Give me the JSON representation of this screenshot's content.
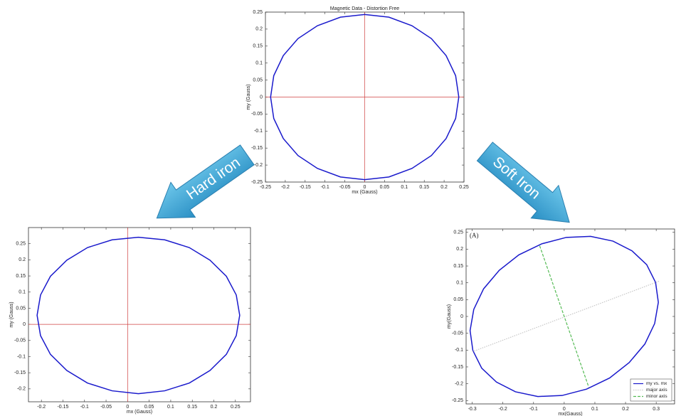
{
  "labels": [
    "Hard iron",
    "Soft Iron"
  ],
  "chart_data": [
    {
      "type": "line",
      "title": "Magnetic Data - Distortion Free",
      "x_label": "mx (Gauss)",
      "y_label": "my (Gauss)",
      "xlim": [
        -0.25,
        0.25
      ],
      "ylim": [
        -0.25,
        0.25
      ],
      "xticks": [
        -0.25,
        -0.2,
        -0.15,
        -0.1,
        -0.05,
        0,
        0.05,
        0.1,
        0.15,
        0.2,
        0.25
      ],
      "yticks": [
        -0.25,
        -0.2,
        -0.15,
        -0.1,
        -0.05,
        0,
        0.05,
        0.1,
        0.15,
        0.2,
        0.25
      ],
      "crosshair_color": "#d04040",
      "series": [
        {
          "color": "#1a1acc",
          "x": [
            0.237,
            0.229,
            0.205,
            0.168,
            0.119,
            0.061,
            0,
            -0.061,
            -0.119,
            -0.168,
            -0.205,
            -0.229,
            -0.237,
            -0.229,
            -0.205,
            -0.168,
            -0.119,
            -0.061,
            0,
            0.061,
            0.119,
            0.168,
            0.205,
            0.229
          ],
          "values": [
            0,
            0.063,
            0.122,
            0.172,
            0.21,
            0.235,
            0.243,
            0.235,
            0.21,
            0.172,
            0.122,
            0.063,
            0,
            -0.063,
            -0.122,
            -0.172,
            -0.21,
            -0.235,
            -0.243,
            -0.235,
            -0.21,
            -0.172,
            -0.122,
            -0.063
          ]
        }
      ]
    },
    {
      "type": "line",
      "x_label": "mx (Gauss)",
      "y_label": "my (Gauss)",
      "xlim": [
        -0.23,
        0.285
      ],
      "ylim": [
        -0.24,
        0.3
      ],
      "xticks": [
        -0.2,
        -0.15,
        -0.1,
        -0.05,
        0,
        0.05,
        0.1,
        0.15,
        0.2,
        0.25
      ],
      "yticks": [
        -0.2,
        -0.15,
        -0.1,
        -0.05,
        0,
        0.05,
        0.1,
        0.15,
        0.2,
        0.25
      ],
      "crosshair_color": "#d04040",
      "series": [
        {
          "color": "#1a1acc",
          "x": [
            0.26,
            0.252,
            0.229,
            0.191,
            0.143,
            0.086,
            0.025,
            -0.036,
            -0.093,
            -0.141,
            -0.179,
            -0.202,
            -0.21,
            -0.202,
            -0.179,
            -0.141,
            -0.093,
            -0.036,
            0.025,
            0.086,
            0.143,
            0.191,
            0.229,
            0.252
          ],
          "values": [
            0.028,
            0.091,
            0.149,
            0.199,
            0.238,
            0.262,
            0.27,
            0.262,
            0.238,
            0.199,
            0.149,
            0.091,
            0.028,
            -0.035,
            -0.093,
            -0.143,
            -0.182,
            -0.206,
            -0.215,
            -0.206,
            -0.182,
            -0.143,
            -0.093,
            -0.035
          ]
        }
      ]
    },
    {
      "type": "line",
      "x_label": "mx(Gauss)",
      "y_label": "my(Gauss)",
      "annotations": [
        "(A)"
      ],
      "xlim": [
        -0.32,
        0.36
      ],
      "ylim": [
        -0.26,
        0.26
      ],
      "xticks": [
        -0.3,
        -0.2,
        -0.1,
        0,
        0.1,
        0.2,
        0.3
      ],
      "yticks": [
        -0.25,
        -0.2,
        -0.15,
        -0.1,
        -0.05,
        0,
        0.05,
        0.1,
        0.15,
        0.2,
        0.25
      ],
      "legend": "lower right",
      "series": [
        {
          "name": "my vs. mx",
          "color": "#1a1acc",
          "x": [
            0.298,
            0.269,
            0.221,
            0.159,
            0.086,
            0.007,
            -0.073,
            -0.148,
            -0.212,
            -0.263,
            -0.295,
            -0.307,
            -0.298,
            -0.269,
            -0.221,
            -0.159,
            -0.086,
            -0.007,
            0.073,
            0.148,
            0.212,
            0.263,
            0.295,
            0.307
          ],
          "values": [
            0.101,
            0.154,
            0.195,
            0.224,
            0.238,
            0.235,
            0.216,
            0.183,
            0.137,
            0.082,
            0.021,
            -0.042,
            -0.101,
            -0.154,
            -0.195,
            -0.224,
            -0.238,
            -0.235,
            -0.216,
            -0.183,
            -0.137,
            -0.082,
            -0.021,
            0.042
          ]
        },
        {
          "name": "major axis",
          "color": "#c8c8c8",
          "dash": "1.5,1.5",
          "x": [
            -0.3,
            0.31
          ],
          "values": [
            -0.105,
            0.105
          ]
        },
        {
          "name": "minor axis",
          "color": "#55bb55",
          "dash": "4,2",
          "x": [
            -0.08,
            0.08
          ],
          "values": [
            0.21,
            -0.21
          ]
        }
      ]
    }
  ]
}
